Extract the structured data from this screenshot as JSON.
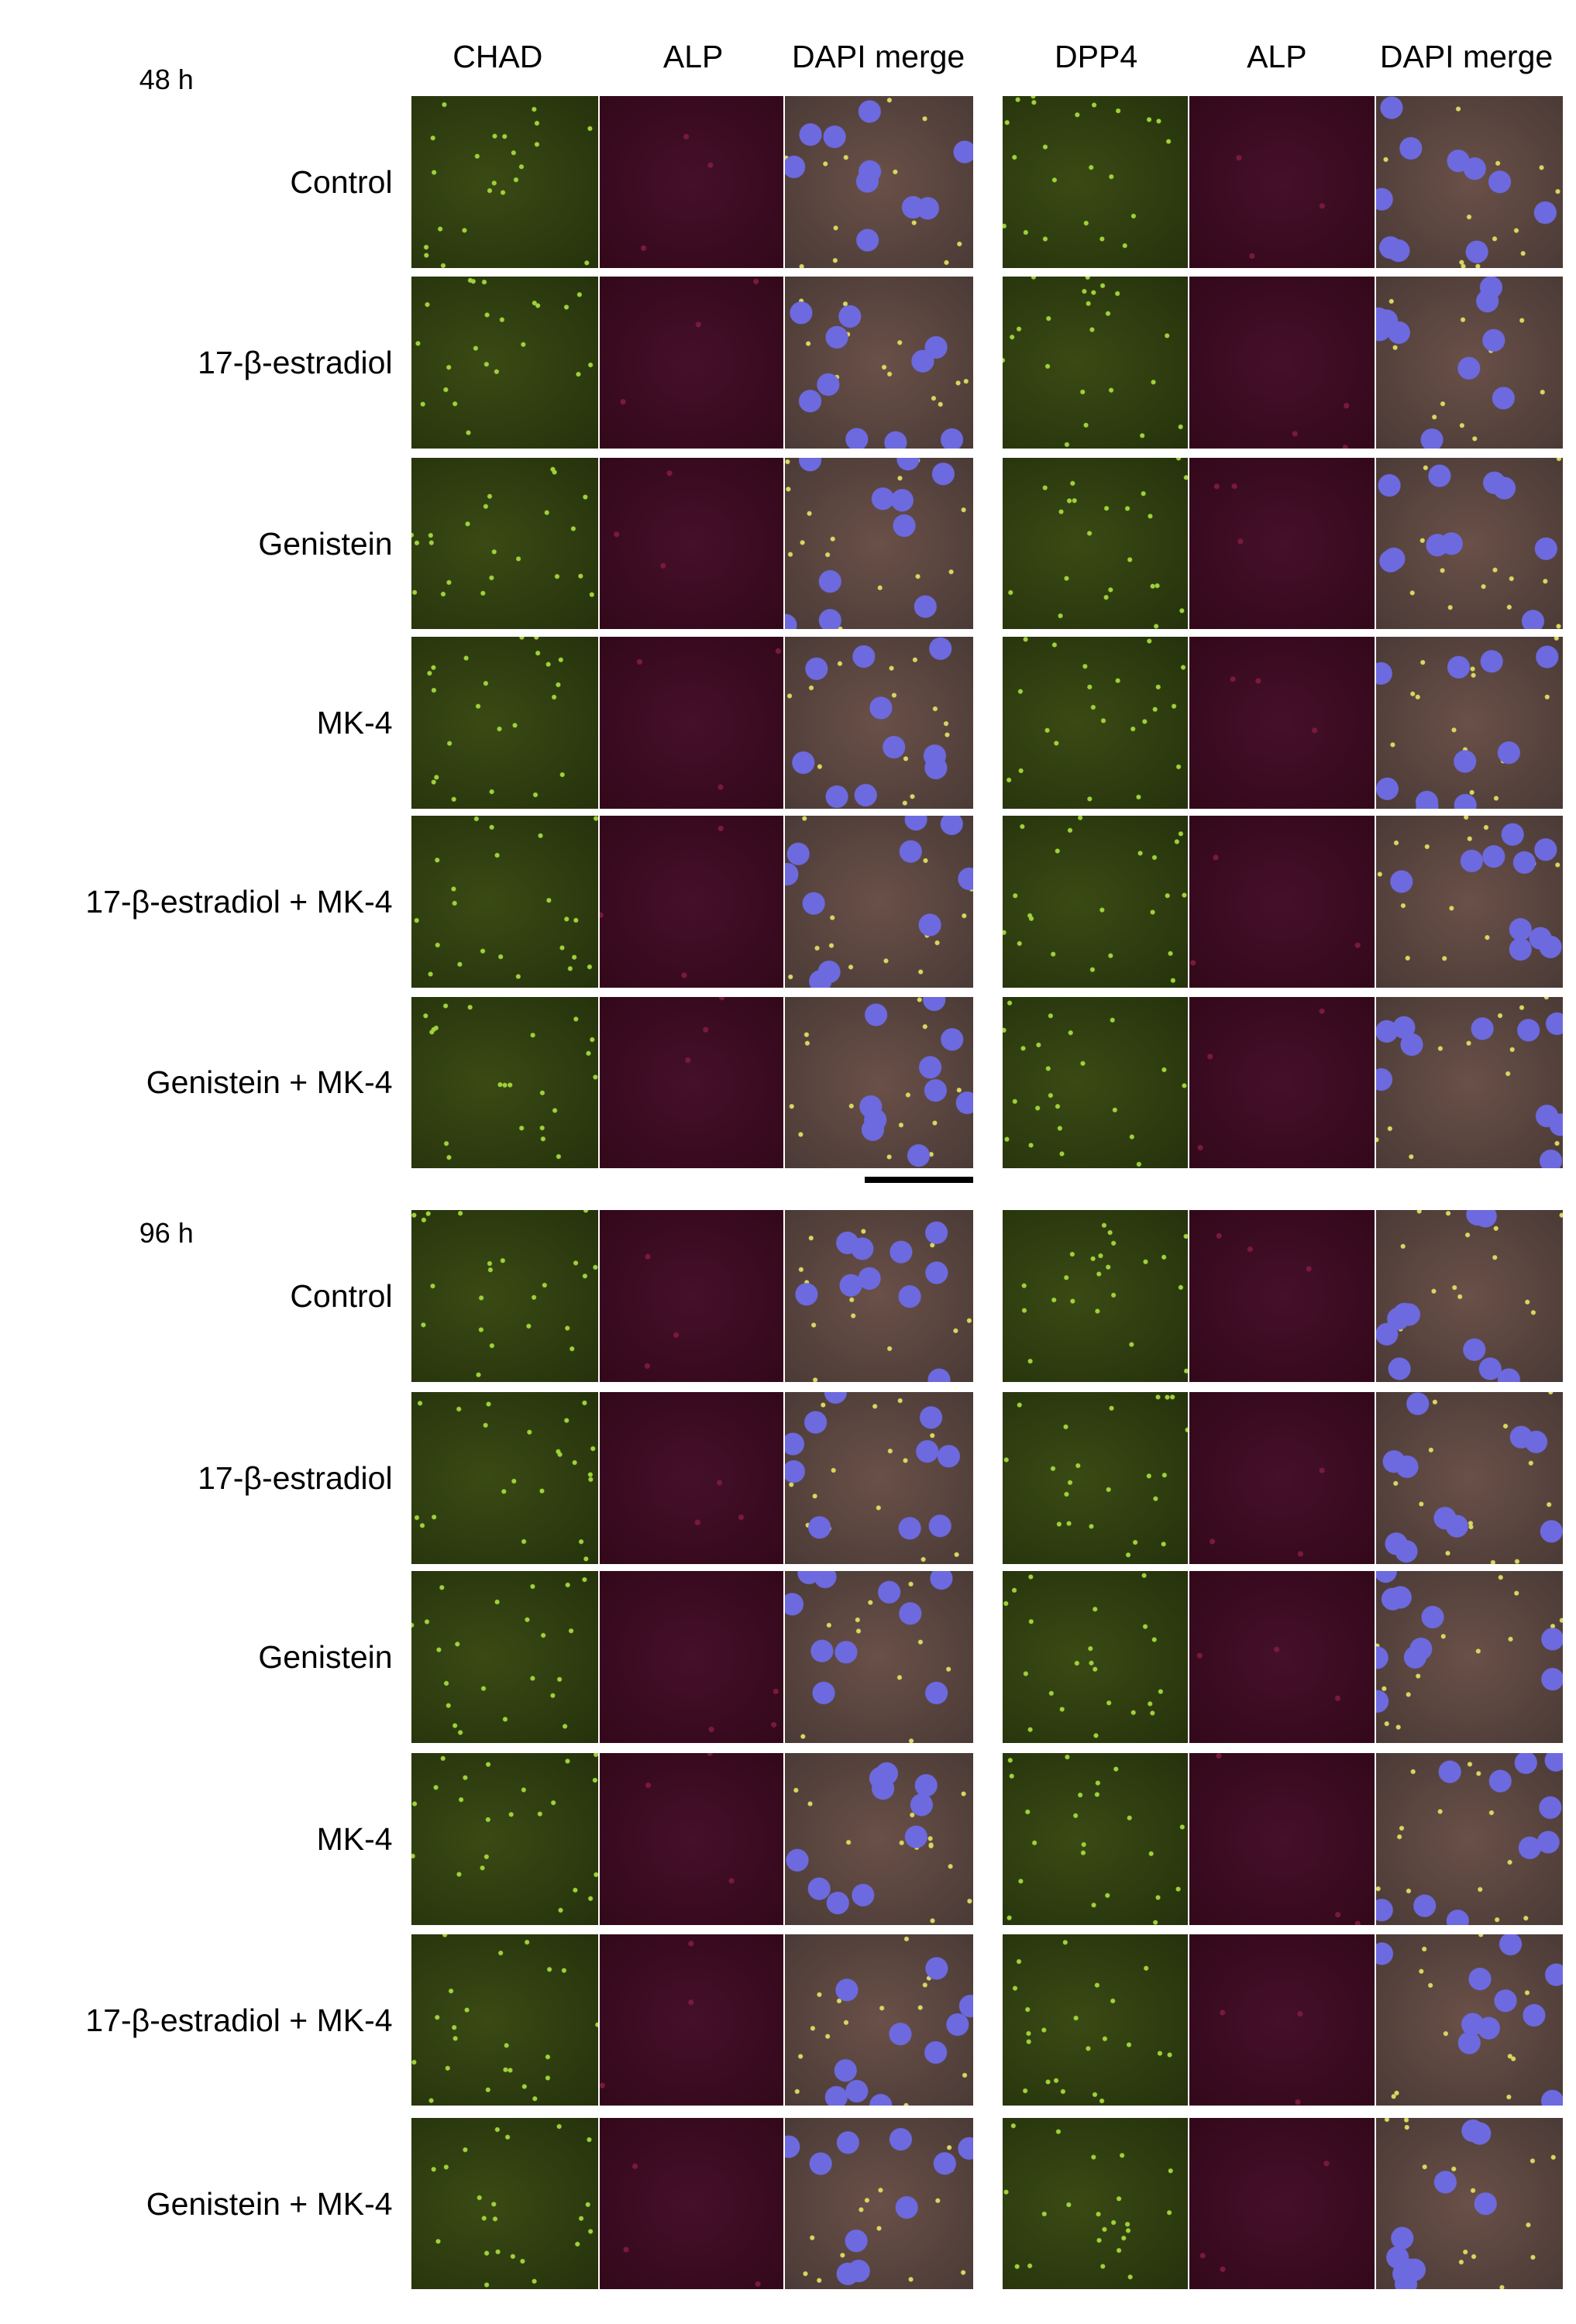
{
  "column_headers": [
    "CHAD",
    "ALP",
    "DAPI merge",
    "DPP4",
    "ALP",
    "DAPI merge"
  ],
  "sections": [
    {
      "time": "48 h",
      "rows": [
        "Control",
        "17-β-estradiol",
        "Genistein",
        "MK-4",
        "17-β-estradiol + MK-4",
        "Genistein + MK-4"
      ]
    },
    {
      "time": "96 h",
      "rows": [
        "Control",
        "17-β-estradiol",
        "Genistein",
        "MK-4",
        "17-β-estradiol + MK-4",
        "Genistein + MK-4"
      ]
    }
  ]
}
